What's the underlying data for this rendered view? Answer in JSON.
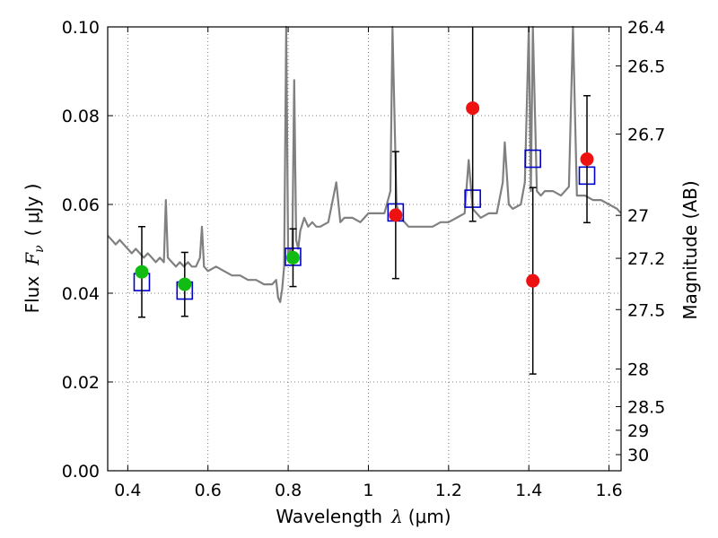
{
  "chart_data": {
    "type": "scatter",
    "xlabel_text": "Wavelength",
    "xlabel_symbol": "λ",
    "xlabel_unit": "(μm)",
    "ylabel_text": "Flux",
    "ylabel_symbol": "F",
    "ylabel_subscript": "ν",
    "ylabel_unit": "( μJy )",
    "y2label": "Magnitude (AB)",
    "xlim": [
      0.35,
      1.63
    ],
    "ylim": [
      0.0,
      0.1
    ],
    "grid": true,
    "x_ticks": [
      0.4,
      0.6,
      0.8,
      1.0,
      1.2,
      1.4,
      1.6
    ],
    "x_tick_labels": [
      "0.4",
      "0.6",
      "0.8",
      "1",
      "1.2",
      "1.4",
      "1.6"
    ],
    "y_ticks": [
      0.0,
      0.02,
      0.04,
      0.06,
      0.08,
      0.1
    ],
    "y_tick_labels": [
      "0.00",
      "0.02",
      "0.04",
      "0.06",
      "0.08",
      "0.10"
    ],
    "y2_ticks": [
      26.4,
      26.5,
      26.7,
      27,
      27.2,
      27.5,
      28,
      28.5,
      29,
      30
    ],
    "y2_tick_labels": [
      "26.4",
      "26.5",
      "26.7",
      "27",
      "27.2",
      "27.5",
      "28",
      "28.5",
      "29",
      "30"
    ],
    "colors": {
      "spectrum": "#808080",
      "model": "#0000cc",
      "green": "#11bb11",
      "red": "#ee1111",
      "errorbar": "#000000",
      "grid": "#555555"
    },
    "series": [
      {
        "name": "model spectrum",
        "style": "line",
        "x": [
          0.35,
          0.36,
          0.37,
          0.38,
          0.39,
          0.4,
          0.41,
          0.42,
          0.43,
          0.44,
          0.45,
          0.46,
          0.47,
          0.48,
          0.49,
          0.495,
          0.5,
          0.51,
          0.52,
          0.53,
          0.54,
          0.55,
          0.56,
          0.57,
          0.58,
          0.585,
          0.59,
          0.6,
          0.62,
          0.64,
          0.66,
          0.68,
          0.7,
          0.72,
          0.74,
          0.76,
          0.77,
          0.775,
          0.78,
          0.785,
          0.79,
          0.795,
          0.8,
          0.805,
          0.81,
          0.815,
          0.82,
          0.825,
          0.83,
          0.84,
          0.85,
          0.86,
          0.87,
          0.88,
          0.9,
          0.92,
          0.93,
          0.94,
          0.96,
          0.98,
          1.0,
          1.02,
          1.04,
          1.055,
          1.06,
          1.07,
          1.08,
          1.09,
          1.1,
          1.12,
          1.14,
          1.16,
          1.18,
          1.2,
          1.22,
          1.24,
          1.25,
          1.26,
          1.27,
          1.28,
          1.3,
          1.32,
          1.335,
          1.34,
          1.35,
          1.36,
          1.38,
          1.39,
          1.4,
          1.405,
          1.41,
          1.42,
          1.43,
          1.44,
          1.46,
          1.48,
          1.5,
          1.51,
          1.52,
          1.54,
          1.56,
          1.58,
          1.6,
          1.62,
          1.63
        ],
        "y": [
          0.053,
          0.052,
          0.051,
          0.052,
          0.051,
          0.05,
          0.049,
          0.05,
          0.049,
          0.048,
          0.049,
          0.048,
          0.047,
          0.048,
          0.047,
          0.061,
          0.048,
          0.047,
          0.046,
          0.047,
          0.046,
          0.047,
          0.046,
          0.046,
          0.048,
          0.055,
          0.046,
          0.045,
          0.046,
          0.045,
          0.044,
          0.044,
          0.043,
          0.043,
          0.042,
          0.042,
          0.043,
          0.039,
          0.038,
          0.041,
          0.046,
          0.1,
          0.048,
          0.05,
          0.049,
          0.088,
          0.052,
          0.05,
          0.054,
          0.057,
          0.055,
          0.056,
          0.055,
          0.055,
          0.056,
          0.065,
          0.056,
          0.057,
          0.057,
          0.056,
          0.058,
          0.058,
          0.058,
          0.063,
          0.1,
          0.06,
          0.057,
          0.056,
          0.055,
          0.055,
          0.055,
          0.055,
          0.056,
          0.056,
          0.057,
          0.058,
          0.07,
          0.059,
          0.058,
          0.057,
          0.058,
          0.058,
          0.065,
          0.074,
          0.06,
          0.059,
          0.06,
          0.065,
          0.1,
          0.063,
          0.1,
          0.063,
          0.062,
          0.063,
          0.063,
          0.062,
          0.064,
          0.1,
          0.062,
          0.062,
          0.061,
          0.061,
          0.06,
          0.059,
          0.058
        ]
      },
      {
        "name": "model photometry",
        "style": "open-square",
        "x": [
          0.435,
          0.542,
          0.812,
          1.068,
          1.26,
          1.41,
          1.545
        ],
        "y": [
          0.0425,
          0.0406,
          0.0482,
          0.0582,
          0.0613,
          0.0703,
          0.0665
        ]
      },
      {
        "name": "detections",
        "style": "filled-circle",
        "color_key": "green",
        "x": [
          0.435,
          0.542,
          0.812
        ],
        "y": [
          0.0448,
          0.042,
          0.048
        ],
        "yerr": [
          0.0102,
          0.0072,
          0.0065
        ]
      },
      {
        "name": "low-S/N measurements",
        "style": "filled-circle",
        "color_key": "red",
        "x": [
          1.068,
          1.26,
          1.41,
          1.545
        ],
        "y": [
          0.0576,
          0.0817,
          0.0428,
          0.0702
        ],
        "yerr": [
          0.0143,
          0.0255,
          0.021,
          0.0143
        ]
      }
    ]
  }
}
